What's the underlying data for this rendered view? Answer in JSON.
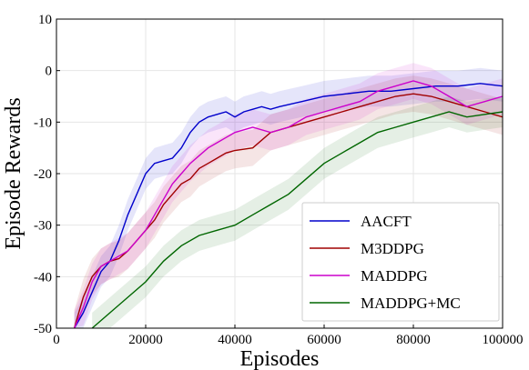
{
  "chart_data": {
    "type": "line",
    "xlabel": "Episodes",
    "ylabel": "Episode Rewards",
    "xlim": [
      0,
      100000
    ],
    "ylim": [
      -50,
      10
    ],
    "xticks": [
      0,
      20000,
      40000,
      60000,
      80000,
      100000
    ],
    "yticks": [
      -50,
      -40,
      -30,
      -20,
      -10,
      0,
      10
    ],
    "grid": true,
    "legend_position": "bottom-right",
    "shaded_bands": true,
    "series": [
      {
        "name": "AACFT",
        "color": "#0000cc",
        "x": [
          4000,
          6000,
          8000,
          10000,
          12000,
          14000,
          16000,
          18000,
          20000,
          22000,
          24000,
          26000,
          28000,
          30000,
          32000,
          34000,
          36000,
          38000,
          40000,
          42000,
          44000,
          46000,
          48000,
          50000,
          55000,
          60000,
          65000,
          70000,
          75000,
          80000,
          85000,
          90000,
          95000,
          100000
        ],
        "y": [
          -50,
          -47,
          -43,
          -39,
          -37,
          -33,
          -28,
          -24,
          -20,
          -18,
          -17.5,
          -17,
          -15,
          -12,
          -10,
          -9,
          -8.5,
          -8,
          -9,
          -8,
          -7.5,
          -7,
          -7.5,
          -7,
          -6,
          -5,
          -4.5,
          -4,
          -4,
          -3.5,
          -3,
          -3,
          -2.5,
          -3
        ]
      },
      {
        "name": "M3DDPG",
        "color": "#a00000",
        "x": [
          4000,
          6000,
          8000,
          10000,
          12000,
          14000,
          16000,
          18000,
          20000,
          22000,
          24000,
          26000,
          28000,
          30000,
          32000,
          34000,
          36000,
          38000,
          40000,
          44000,
          48000,
          52000,
          56000,
          60000,
          64000,
          68000,
          72000,
          76000,
          80000,
          84000,
          88000,
          92000,
          96000,
          100000
        ],
        "y": [
          -50,
          -44,
          -40,
          -38,
          -37,
          -36.5,
          -35,
          -33,
          -31,
          -29,
          -26,
          -24,
          -22,
          -21,
          -19,
          -18,
          -17,
          -16,
          -15.5,
          -15,
          -12,
          -11,
          -10,
          -9,
          -8,
          -7,
          -6,
          -5,
          -4.5,
          -5,
          -6,
          -7,
          -8,
          -9
        ]
      },
      {
        "name": "MADDPG",
        "color": "#cc00cc",
        "x": [
          4000,
          6000,
          8000,
          10000,
          12000,
          14000,
          16000,
          18000,
          20000,
          22000,
          24000,
          26000,
          28000,
          30000,
          32000,
          34000,
          36000,
          38000,
          40000,
          44000,
          48000,
          52000,
          56000,
          60000,
          64000,
          68000,
          72000,
          76000,
          80000,
          84000,
          88000,
          92000,
          96000,
          100000
        ],
        "y": [
          -50,
          -46,
          -41,
          -38,
          -37,
          -36,
          -35,
          -33,
          -31,
          -28,
          -25,
          -22,
          -20,
          -18,
          -16.5,
          -15,
          -14,
          -13,
          -12,
          -11,
          -12,
          -11,
          -9,
          -8,
          -7,
          -6,
          -4,
          -3,
          -2,
          -3,
          -5,
          -7,
          -6,
          -5
        ]
      },
      {
        "name": "MADDPG+MC",
        "color": "#006600",
        "x": [
          8000,
          12000,
          16000,
          20000,
          24000,
          28000,
          32000,
          36000,
          40000,
          44000,
          48000,
          52000,
          56000,
          60000,
          64000,
          68000,
          72000,
          76000,
          80000,
          84000,
          88000,
          92000,
          96000,
          100000
        ],
        "y": [
          -50,
          -47,
          -44,
          -41,
          -37,
          -34,
          -32,
          -31,
          -30,
          -28,
          -26,
          -24,
          -21,
          -18,
          -16,
          -14,
          -12,
          -11,
          -10,
          -9,
          -8,
          -9,
          -8.5,
          -8
        ]
      }
    ]
  }
}
